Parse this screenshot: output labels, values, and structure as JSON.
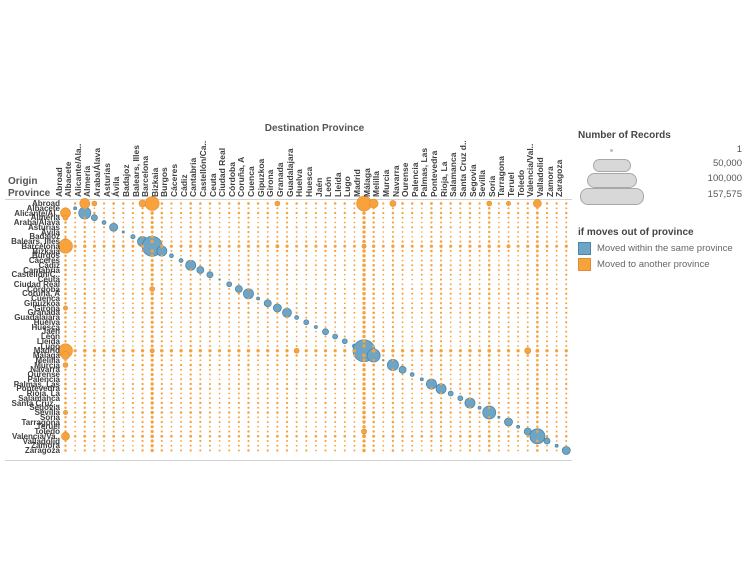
{
  "axes": {
    "destination_title": "Destination Province",
    "origin_title_lines": [
      "Origin",
      "Province"
    ]
  },
  "legend_size": {
    "title": "Number of Records",
    "items": [
      {
        "label": "1"
      },
      {
        "label": "50,000"
      },
      {
        "label": "100,000"
      },
      {
        "label": "157,575"
      }
    ]
  },
  "legend_color": {
    "title": "if moves out of province",
    "items": [
      {
        "label": "Moved within the same province",
        "color": "#6FA5C4",
        "border": "#4F85A5"
      },
      {
        "label": "Moved to another province",
        "color": "#F7A23C",
        "border": "#E18F2E"
      }
    ]
  },
  "chart_data": {
    "type": "scatter",
    "subtype": "origin-destination-matrix",
    "xlabel": "Destination Province",
    "ylabel": "Origin Province",
    "size_scale": {
      "min": 1,
      "max": 157575
    },
    "colors": {
      "within_province": "#6FA5C4",
      "within_border": "#4F85A5",
      "between_province": "#F7A23C",
      "between_border": "#E18F2E"
    },
    "x_categories": [
      "Abroad",
      "Albacete",
      "Alicante/Ala..",
      "Almería",
      "Araba/Álava",
      "Asturias",
      "Ávila",
      "Badajoz",
      "Balears, Illes",
      "Barcelona",
      "Bizkaia",
      "Burgos",
      "Cáceres",
      "Cádiz",
      "Cantabria",
      "Castellón/Ca..",
      "Ceuta",
      "Ciudad Real",
      "Córdoba",
      "Coruña, A",
      "Cuenca",
      "Gipuzkoa",
      "Girona",
      "Granada",
      "Guadalajara",
      "Huelva",
      "Huesca",
      "Jaén",
      "León",
      "Lleida",
      "Lugo",
      "Madrid",
      "Málaga",
      "Melilla",
      "Murcia",
      "Navarra",
      "Ourense",
      "Palencia",
      "Palmas, Las",
      "Pontevedra",
      "Rioja, La",
      "Salamanca",
      "Santa Cruz d..",
      "Segovia",
      "Sevilla",
      "Soria",
      "Tarragona",
      "Teruel",
      "Toledo",
      "Valencia/Val..",
      "Valladolid",
      "Zamora",
      "Zaragoza"
    ],
    "y_categories": [
      "Abroad",
      "Albacete",
      "Alicante/Al..",
      "Almería",
      "Araba/Álava",
      "Asturias",
      "Ávila",
      "Badajoz",
      "Balears, Illes",
      "Barcelona",
      "Bizkaia",
      "Burgos",
      "Cáceres",
      "Cádiz",
      "Cantabria",
      "Castellón/C..",
      "Ceuta",
      "Ciudad Real",
      "Córdoba",
      "Coruña, A",
      "Cuenca",
      "Gipuzkoa",
      "Girona",
      "Granada",
      "Guadalajara",
      "Huelva",
      "Huesca",
      "Jaén",
      "León",
      "Lleida",
      "Lugo",
      "Madrid",
      "Málaga",
      "Melilla",
      "Murcia",
      "Navarra",
      "Ourense",
      "Palencia",
      "Palmas, Las",
      "Pontevedra",
      "Rioja, La",
      "Salamanca",
      "Santa Cruz ..",
      "Segovia",
      "Sevilla",
      "Soria",
      "Tarragona",
      "Teruel",
      "Toledo",
      "Valencia/Va..",
      "Valladolid",
      "Zamora",
      "Zaragoza"
    ],
    "diagonal_within_province_values": [
      0,
      3000,
      47000,
      12000,
      5000,
      21000,
      1500,
      6000,
      33000,
      130000,
      33000,
      5000,
      5000,
      33000,
      16000,
      12000,
      800,
      8000,
      16000,
      33000,
      3000,
      16000,
      21000,
      26000,
      5000,
      8000,
      3000,
      12000,
      8000,
      8000,
      5000,
      157575,
      55000,
      800,
      40000,
      16000,
      5000,
      3000,
      33000,
      33000,
      8000,
      8000,
      33000,
      3000,
      55000,
      1500,
      21000,
      3000,
      16000,
      73000,
      12000,
      3000,
      21000
    ],
    "abroad_flow_weight": 60000,
    "default_flow_base_value": 600,
    "notable_flows": [
      {
        "origin": "Abroad",
        "destination": "Alicante/Ala..",
        "value": 33000
      },
      {
        "origin": "Abroad",
        "destination": "Almería",
        "value": 8000
      },
      {
        "origin": "Abroad",
        "destination": "Balears, Illes",
        "value": 16000
      },
      {
        "origin": "Abroad",
        "destination": "Barcelona",
        "value": 64000
      },
      {
        "origin": "Abroad",
        "destination": "Girona",
        "value": 8000
      },
      {
        "origin": "Abroad",
        "destination": "Madrid",
        "value": 73000
      },
      {
        "origin": "Abroad",
        "destination": "Málaga",
        "value": 26000
      },
      {
        "origin": "Abroad",
        "destination": "Murcia",
        "value": 12000
      },
      {
        "origin": "Abroad",
        "destination": "Sevilla",
        "value": 8000
      },
      {
        "origin": "Abroad",
        "destination": "Tarragona",
        "value": 6000
      },
      {
        "origin": "Abroad",
        "destination": "Valencia/Val..",
        "value": 21000
      },
      {
        "origin": "Alicante/Ala..",
        "destination": "Abroad",
        "value": 33000
      },
      {
        "origin": "Almería",
        "destination": "Abroad",
        "value": 8000
      },
      {
        "origin": "Balears, Illes",
        "destination": "Abroad",
        "value": 12000
      },
      {
        "origin": "Barcelona",
        "destination": "Abroad",
        "value": 64000
      },
      {
        "origin": "Girona",
        "destination": "Abroad",
        "value": 6000
      },
      {
        "origin": "Madrid",
        "destination": "Abroad",
        "value": 64000
      },
      {
        "origin": "Málaga",
        "destination": "Abroad",
        "value": 21000
      },
      {
        "origin": "Murcia",
        "destination": "Abroad",
        "value": 8000
      },
      {
        "origin": "Sevilla",
        "destination": "Abroad",
        "value": 6000
      },
      {
        "origin": "Valencia/Val..",
        "destination": "Abroad",
        "value": 21000
      },
      {
        "origin": "Madrid",
        "destination": "Toledo",
        "value": 12000
      },
      {
        "origin": "Toledo",
        "destination": "Madrid",
        "value": 9000
      },
      {
        "origin": "Madrid",
        "destination": "Guadalajara",
        "value": 8000
      },
      {
        "origin": "Córdoba",
        "destination": "Barcelona",
        "value": 8000
      },
      {
        "origin": "Barcelona",
        "destination": "Tarragona",
        "value": 5000
      },
      {
        "origin": "Barcelona",
        "destination": "Girona",
        "value": 5000
      }
    ]
  }
}
